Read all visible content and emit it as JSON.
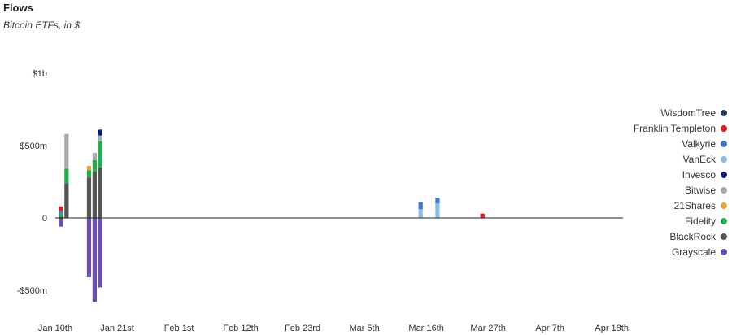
{
  "header": {
    "title": "Flows",
    "subtitle": "Bitcoin ETFs, in $"
  },
  "chart_data": {
    "type": "bar",
    "stacked": true,
    "title": "Flows",
    "subtitle": "Bitcoin ETFs, in $",
    "xlabel": "",
    "ylabel": "",
    "y_unit": "USD",
    "ylim": [
      -700000000,
      1200000000
    ],
    "y_ticks": [
      {
        "value": 1000000000,
        "label": "$1b"
      },
      {
        "value": 500000000,
        "label": "$500m"
      },
      {
        "value": 0,
        "label": "0"
      },
      {
        "value": -500000000,
        "label": "-$500m"
      }
    ],
    "grid": false,
    "legend_position": "right",
    "categories": [
      "2024-01-11",
      "2024-01-12",
      "2024-01-16",
      "2024-01-17",
      "2024-01-18",
      "2024-01-19",
      "2024-01-22",
      "2024-01-23",
      "2024-01-24",
      "2024-01-25",
      "2024-01-26",
      "2024-01-29",
      "2024-01-30",
      "2024-01-31",
      "2024-02-01",
      "2024-02-02",
      "2024-02-05",
      "2024-02-06",
      "2024-02-07",
      "2024-02-08",
      "2024-02-09",
      "2024-02-12",
      "2024-02-13",
      "2024-02-14",
      "2024-02-15",
      "2024-02-16",
      "2024-02-20",
      "2024-02-21",
      "2024-02-22",
      "2024-02-23",
      "2024-02-26",
      "2024-02-27",
      "2024-02-28",
      "2024-02-29",
      "2024-03-01",
      "2024-03-04",
      "2024-03-05",
      "2024-03-06",
      "2024-03-07",
      "2024-03-08",
      "2024-03-11",
      "2024-03-12",
      "2024-03-13",
      "2024-03-14",
      "2024-03-15",
      "2024-03-18",
      "2024-03-19",
      "2024-03-20",
      "2024-03-21",
      "2024-03-22",
      "2024-03-25",
      "2024-03-26",
      "2024-03-27",
      "2024-03-28",
      "2024-04-01",
      "2024-04-02",
      "2024-04-03",
      "2024-04-04",
      "2024-04-05",
      "2024-04-08",
      "2024-04-09",
      "2024-04-10",
      "2024-04-11",
      "2024-04-12",
      "2024-04-15",
      "2024-04-16",
      "2024-04-17",
      "2024-04-18",
      "2024-04-19"
    ],
    "x_ticks": [
      {
        "date": "2024-01-10",
        "label": "Jan 10th"
      },
      {
        "date": "2024-01-21",
        "label": "Jan 21st"
      },
      {
        "date": "2024-02-01",
        "label": "Feb 1st"
      },
      {
        "date": "2024-02-12",
        "label": "Feb 12th"
      },
      {
        "date": "2024-02-23",
        "label": "Feb 23rd"
      },
      {
        "date": "2024-03-05",
        "label": "Mar 5th"
      },
      {
        "date": "2024-03-16",
        "label": "Mar 16th"
      },
      {
        "date": "2024-03-27",
        "label": "Mar 27th"
      },
      {
        "date": "2024-04-07",
        "label": "Apr 7th"
      },
      {
        "date": "2024-04-18",
        "label": "Apr 18th"
      }
    ],
    "series": [
      {
        "name": "WisdomTree",
        "color": "#1f3b5c",
        "values": [
          0,
          0,
          0,
          0,
          0,
          0,
          0,
          0,
          0,
          0,
          0,
          0,
          0,
          0,
          0,
          0,
          0,
          0,
          0,
          0,
          0,
          0,
          0,
          0,
          0,
          0,
          0,
          0,
          0,
          0,
          0,
          0,
          0,
          0,
          0,
          0,
          0,
          0,
          0,
          0,
          0,
          0,
          0,
          0,
          0,
          0,
          0,
          0,
          0,
          0,
          0,
          0,
          0,
          0,
          0,
          0,
          0,
          0,
          0,
          0,
          0,
          0,
          0,
          0,
          0,
          0,
          0,
          0,
          0
        ]
      },
      {
        "name": "Franklin Templeton",
        "color": "#e31a1c",
        "values": [
          30000000,
          0,
          0,
          0,
          0,
          0,
          0,
          0,
          0,
          0,
          0,
          0,
          0,
          0,
          0,
          0,
          0,
          0,
          0,
          0,
          0,
          0,
          0,
          0,
          0,
          0,
          0,
          0,
          0,
          0,
          0,
          0,
          0,
          0,
          0,
          0,
          0,
          0,
          0,
          0,
          0,
          0,
          0,
          0,
          0,
          0,
          0,
          0,
          0,
          0,
          0,
          30000000,
          0,
          0,
          0,
          0,
          0,
          0,
          0,
          0,
          0,
          0,
          0,
          0,
          0,
          0,
          0,
          0,
          0
        ]
      },
      {
        "name": "Valkyrie",
        "color": "#3a78d4",
        "values": [
          20000000,
          0,
          0,
          0,
          0,
          0,
          0,
          0,
          0,
          0,
          0,
          0,
          0,
          0,
          0,
          0,
          0,
          0,
          0,
          0,
          0,
          0,
          0,
          0,
          0,
          0,
          0,
          0,
          0,
          0,
          0,
          0,
          0,
          0,
          0,
          0,
          0,
          0,
          0,
          0,
          0,
          0,
          0,
          0,
          50000000,
          40000000,
          0,
          0,
          0,
          0,
          0,
          0,
          0,
          0,
          0,
          0,
          0,
          0,
          0,
          0,
          0,
          0,
          0,
          0,
          0,
          0,
          0,
          0,
          0
        ]
      },
      {
        "name": "VanEck",
        "color": "#8bbce8",
        "values": [
          0,
          0,
          0,
          0,
          0,
          0,
          0,
          0,
          0,
          0,
          0,
          0,
          0,
          0,
          0,
          0,
          0,
          0,
          0,
          0,
          0,
          0,
          0,
          0,
          0,
          0,
          0,
          0,
          0,
          0,
          0,
          0,
          0,
          0,
          0,
          0,
          0,
          0,
          0,
          0,
          0,
          0,
          0,
          0,
          60000000,
          100000000,
          0,
          0,
          0,
          0,
          0,
          0,
          0,
          0,
          0,
          0,
          0,
          0,
          0,
          0,
          0,
          0,
          0,
          0,
          0,
          0,
          0,
          0,
          0
        ]
      },
      {
        "name": "Invesco",
        "color": "#0a1f7a",
        "values": [
          0,
          0,
          0,
          0,
          40000000,
          0,
          0,
          0,
          0,
          0,
          0,
          0,
          0,
          0,
          0,
          0,
          0,
          0,
          0,
          0,
          0,
          0,
          0,
          0,
          0,
          0,
          0,
          0,
          0,
          0,
          0,
          0,
          0,
          0,
          0,
          0,
          0,
          0,
          0,
          0,
          0,
          0,
          0,
          0,
          0,
          0,
          0,
          0,
          0,
          0,
          0,
          0,
          0,
          0,
          0,
          0,
          0,
          0,
          0,
          0,
          0,
          0,
          0,
          0,
          0,
          0,
          0,
          0,
          0
        ]
      },
      {
        "name": "Bitwise",
        "color": "#a9a9a9",
        "values": [
          0,
          240000000,
          0,
          50000000,
          40000000,
          0,
          0,
          0,
          0,
          0,
          0,
          0,
          0,
          0,
          0,
          0,
          0,
          0,
          0,
          0,
          0,
          0,
          0,
          0,
          0,
          0,
          0,
          0,
          0,
          0,
          0,
          0,
          0,
          0,
          0,
          0,
          0,
          0,
          0,
          0,
          0,
          0,
          0,
          0,
          0,
          0,
          0,
          0,
          0,
          0,
          0,
          0,
          0,
          0,
          0,
          0,
          0,
          0,
          0,
          0,
          0,
          0,
          0,
          0,
          0,
          0,
          0,
          0,
          0
        ]
      },
      {
        "name": "21Shares",
        "color": "#e8a838",
        "values": [
          0,
          0,
          30000000,
          0,
          0,
          0,
          0,
          0,
          0,
          0,
          0,
          0,
          0,
          0,
          0,
          0,
          0,
          0,
          0,
          0,
          0,
          0,
          0,
          0,
          0,
          0,
          0,
          0,
          0,
          0,
          0,
          0,
          0,
          0,
          0,
          0,
          0,
          0,
          0,
          0,
          0,
          0,
          0,
          0,
          0,
          0,
          0,
          0,
          0,
          0,
          0,
          0,
          0,
          0,
          0,
          0,
          0,
          0,
          0,
          0,
          0,
          0,
          0,
          0,
          0,
          0,
          0,
          0,
          0
        ]
      },
      {
        "name": "Fidelity",
        "color": "#1fae4b",
        "values": [
          20000000,
          100000000,
          50000000,
          80000000,
          180000000,
          0,
          0,
          0,
          0,
          0,
          0,
          0,
          0,
          0,
          0,
          0,
          0,
          0,
          0,
          0,
          0,
          0,
          0,
          0,
          0,
          0,
          0,
          0,
          0,
          0,
          0,
          0,
          0,
          0,
          0,
          0,
          0,
          0,
          0,
          0,
          0,
          0,
          0,
          0,
          0,
          0,
          0,
          0,
          0,
          0,
          0,
          0,
          0,
          0,
          0,
          0,
          0,
          0,
          0,
          0,
          0,
          0,
          0,
          0,
          0,
          0,
          0,
          0,
          0
        ]
      },
      {
        "name": "BlackRock",
        "color": "#555555",
        "values": [
          10000000,
          240000000,
          280000000,
          320000000,
          350000000,
          0,
          0,
          0,
          0,
          0,
          0,
          0,
          0,
          0,
          0,
          0,
          0,
          0,
          0,
          0,
          0,
          0,
          0,
          0,
          0,
          0,
          0,
          0,
          0,
          0,
          0,
          0,
          0,
          0,
          0,
          0,
          0,
          0,
          0,
          0,
          0,
          0,
          0,
          0,
          0,
          0,
          0,
          0,
          0,
          0,
          0,
          0,
          0,
          0,
          0,
          0,
          0,
          0,
          0,
          0,
          0,
          0,
          0,
          0,
          0,
          0,
          0,
          0,
          0
        ]
      },
      {
        "name": "Grayscale",
        "color": "#6a4fb0",
        "values": [
          -60000000,
          0,
          -410000000,
          -580000000,
          -480000000,
          0,
          0,
          0,
          0,
          0,
          0,
          0,
          0,
          0,
          0,
          0,
          0,
          0,
          0,
          0,
          0,
          0,
          0,
          0,
          0,
          0,
          0,
          0,
          0,
          0,
          0,
          0,
          0,
          0,
          0,
          0,
          0,
          0,
          0,
          0,
          0,
          0,
          0,
          0,
          0,
          0,
          0,
          0,
          0,
          0,
          0,
          0,
          0,
          0,
          0,
          0,
          0,
          0,
          0,
          0,
          0,
          0,
          0,
          0,
          0,
          0,
          0,
          0,
          0
        ]
      }
    ]
  }
}
